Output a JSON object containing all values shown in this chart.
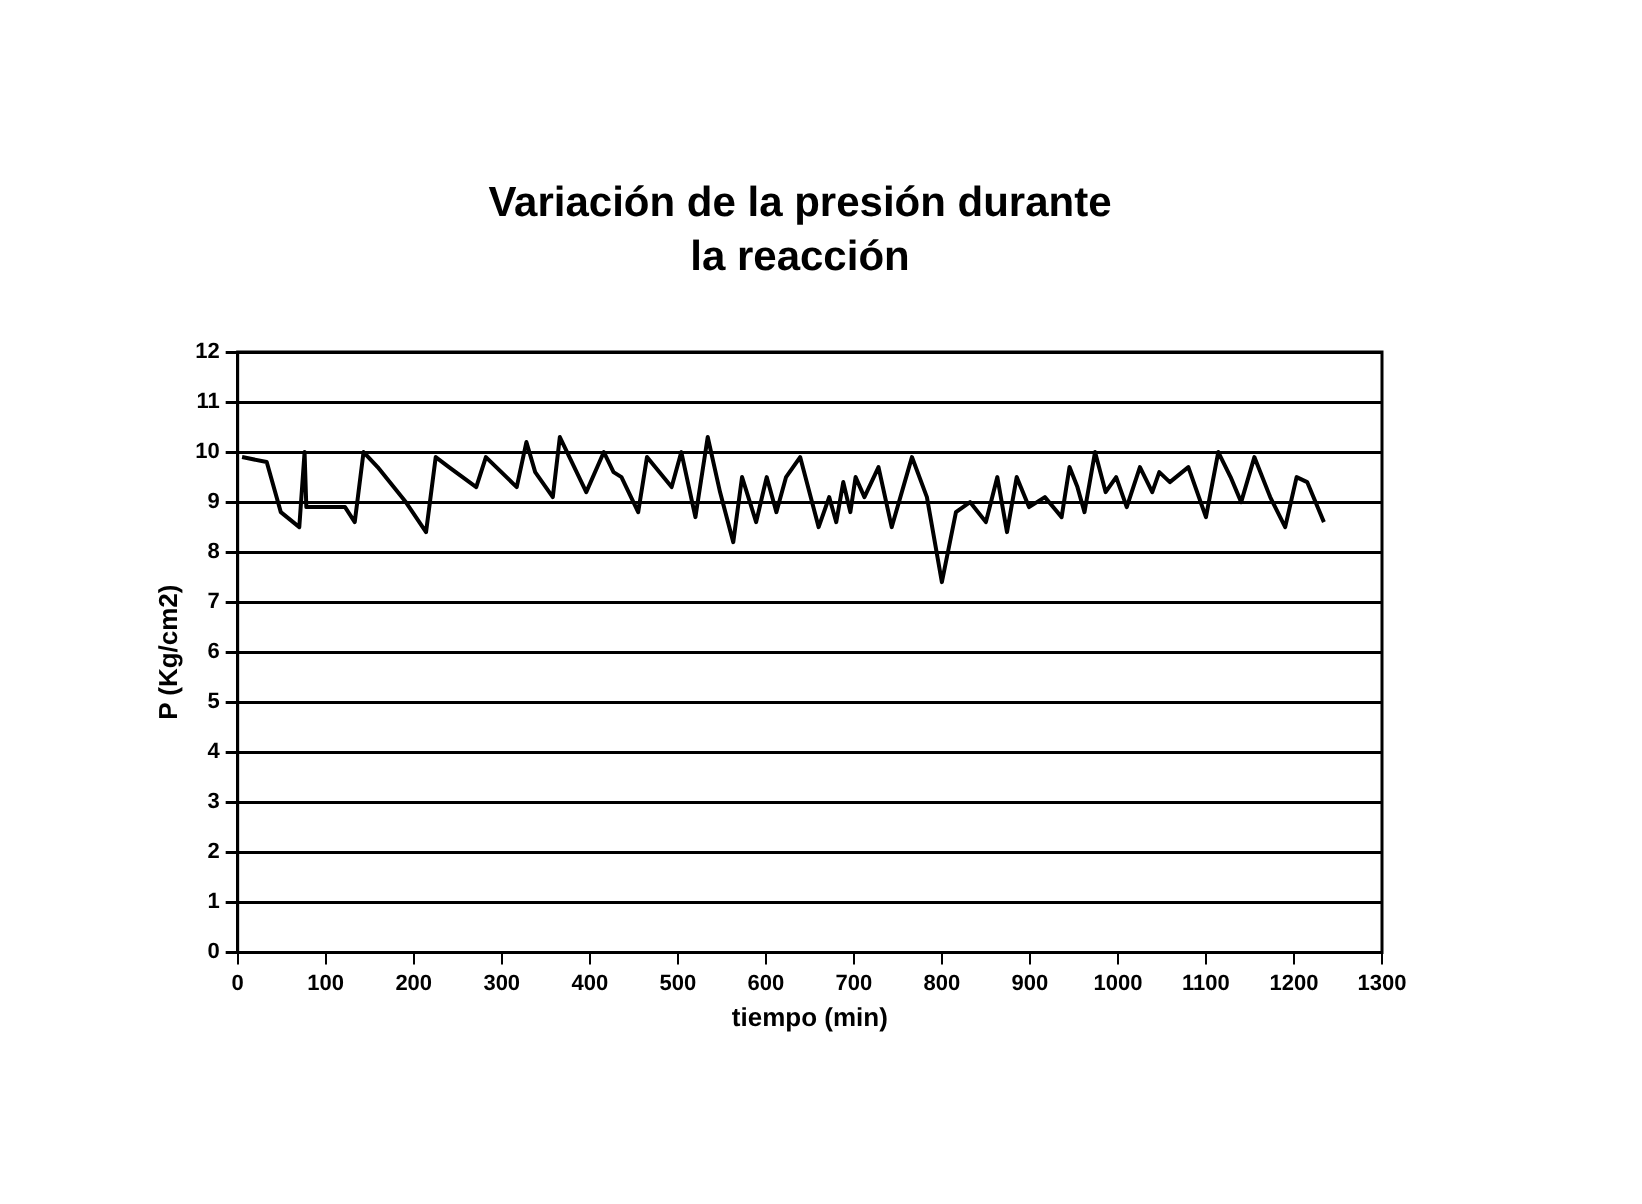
{
  "chart_data": {
    "type": "line",
    "title": "Variación de la presión durante la reacción",
    "xlabel": "tiempo (min)",
    "ylabel": "P (Kg/cm2)",
    "xlim": [
      0,
      1300
    ],
    "xticks": [
      0,
      100,
      200,
      300,
      400,
      500,
      600,
      700,
      800,
      900,
      1000,
      1100,
      1200,
      1300
    ],
    "ylim": [
      0,
      12
    ],
    "yticks": [
      0,
      1,
      2,
      3,
      4,
      5,
      6,
      7,
      8,
      9,
      10,
      11,
      12
    ],
    "grid": "y",
    "legend": false,
    "marker": "none",
    "line_style": "solid",
    "x": [
      5,
      33,
      49,
      70,
      76,
      78,
      122,
      133,
      143,
      159,
      191,
      214,
      225,
      240,
      271,
      282,
      317,
      328,
      338,
      358,
      366,
      396,
      416,
      427,
      436,
      455,
      465,
      479,
      493,
      504,
      520,
      534,
      548,
      563,
      573,
      589,
      601,
      612,
      623,
      639,
      660,
      672,
      680,
      688,
      696,
      702,
      712,
      728,
      743,
      766,
      783,
      800,
      816,
      832,
      850,
      863,
      874,
      885,
      899,
      917,
      936,
      945,
      954,
      962,
      974,
      986,
      998,
      1010,
      1025,
      1039,
      1047,
      1059,
      1080,
      1100,
      1114,
      1128,
      1140,
      1155,
      1173,
      1190,
      1203,
      1215,
      1234
    ],
    "series": [
      {
        "color": "#000000",
        "values": [
          9.9,
          9.8,
          8.8,
          8.5,
          10.0,
          8.9,
          8.9,
          8.6,
          10.0,
          9.7,
          9.0,
          8.4,
          9.9,
          9.7,
          9.3,
          9.9,
          9.3,
          10.2,
          9.6,
          9.1,
          10.3,
          9.2,
          10.0,
          9.6,
          9.5,
          8.8,
          9.9,
          9.6,
          9.3,
          10.0,
          8.7,
          10.3,
          9.2,
          8.2,
          9.5,
          8.6,
          9.5,
          8.8,
          9.5,
          9.9,
          8.5,
          9.1,
          8.6,
          9.4,
          8.8,
          9.5,
          9.1,
          9.7,
          8.5,
          9.9,
          9.1,
          7.4,
          8.8,
          9.0,
          8.6,
          9.5,
          8.4,
          9.5,
          8.9,
          9.1,
          8.7,
          9.7,
          9.3,
          8.8,
          10.0,
          9.2,
          9.5,
          8.9,
          9.7,
          9.2,
          9.6,
          9.4,
          9.7,
          8.7,
          10.0,
          9.5,
          9.0,
          9.9,
          9.1,
          8.5,
          9.5,
          9.4,
          8.6
        ]
      }
    ]
  }
}
